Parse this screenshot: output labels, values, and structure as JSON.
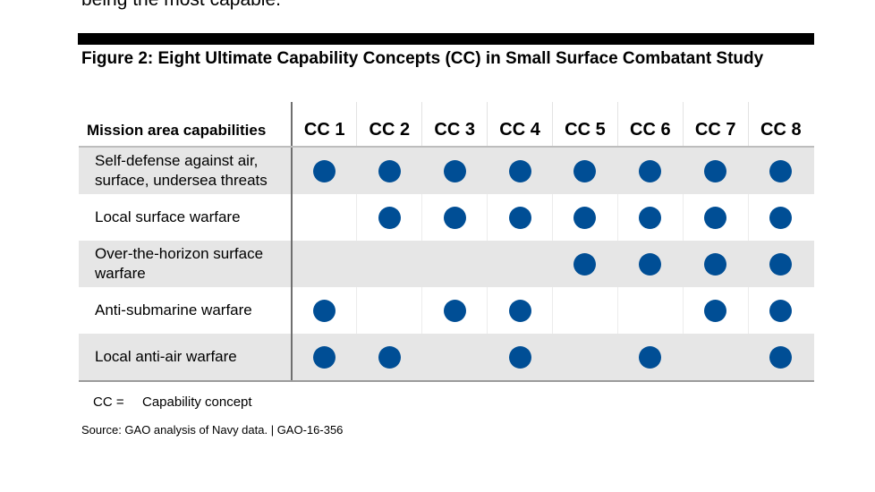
{
  "top_text": "being the most capable.",
  "figure": {
    "title": "Figure 2: Eight Ultimate Capability Concepts (CC) in Small Surface Combatant Study"
  },
  "table": {
    "header_label": "Mission area capabilities",
    "columns": [
      "CC 1",
      "CC 2",
      "CC 3",
      "CC 4",
      "CC 5",
      "CC 6",
      "CC 7",
      "CC 8"
    ],
    "dot_color": "#004e95",
    "rows": [
      {
        "label": "Self-defense against air, surface, undersea threats",
        "marks": [
          true,
          true,
          true,
          true,
          true,
          true,
          true,
          true
        ]
      },
      {
        "label": "Local surface warfare",
        "marks": [
          false,
          true,
          true,
          true,
          true,
          true,
          true,
          true
        ]
      },
      {
        "label": "Over-the-horizon surface warfare",
        "marks": [
          false,
          false,
          false,
          false,
          true,
          true,
          true,
          true
        ]
      },
      {
        "label": "Anti-submarine warfare",
        "marks": [
          true,
          false,
          true,
          true,
          false,
          false,
          true,
          true
        ]
      },
      {
        "label": "Local anti-air warfare",
        "marks": [
          true,
          true,
          false,
          true,
          false,
          true,
          false,
          true
        ]
      }
    ]
  },
  "legend": {
    "abbr": "CC =",
    "text": "Capability concept"
  },
  "source": "Source: GAO analysis of Navy data.  |  GAO-16-356"
}
